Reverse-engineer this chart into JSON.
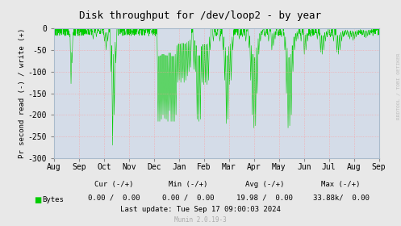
{
  "title": "Disk throughput for /dev/loop2 - by year",
  "ylabel": "Pr second read (-) / write (+)",
  "background_color": "#e8e8e8",
  "plot_bg_color": "#d4dce8",
  "grid_color_h": "#ff9999",
  "grid_color_v": "#ff9999",
  "line_color": "#00cc00",
  "ylim": [
    -300,
    0
  ],
  "yticks": [
    0,
    -50,
    -100,
    -150,
    -200,
    -250,
    -300
  ],
  "xlabel_months": [
    "Aug",
    "Sep",
    "Oct",
    "Nov",
    "Dec",
    "Jan",
    "Feb",
    "Mar",
    "Apr",
    "May",
    "Jun",
    "Jul",
    "Aug",
    "Sep"
  ],
  "side_label": "RRDTOOL / TOBI OETIKER",
  "legend_label": "Bytes",
  "cur_label": "Cur (-/+)",
  "min_label": "Min (-/+)",
  "avg_label": "Avg (-/+)",
  "max_label": "Max (-/+)",
  "cur": "0.00 /  0.00",
  "min_val": "0.00 /  0.00",
  "avg": "19.98 /  0.00",
  "max": "33.88k/  0.00",
  "last_update": "Last update: Tue Sep 17 09:00:03 2024",
  "munin_version": "Munin 2.0.19-3",
  "spike_data": [
    [
      0.045,
      -8
    ],
    [
      0.048,
      -20
    ],
    [
      0.052,
      -128
    ],
    [
      0.055,
      -80
    ],
    [
      0.058,
      -15
    ],
    [
      0.1,
      -8
    ],
    [
      0.11,
      -15
    ],
    [
      0.12,
      -25
    ],
    [
      0.13,
      -20
    ],
    [
      0.14,
      -10
    ],
    [
      0.155,
      -30
    ],
    [
      0.16,
      -50
    ],
    [
      0.165,
      -30
    ],
    [
      0.175,
      -100
    ],
    [
      0.18,
      -270
    ],
    [
      0.185,
      -200
    ],
    [
      0.19,
      -80
    ],
    [
      0.22,
      -15
    ],
    [
      0.24,
      -10
    ],
    [
      0.26,
      -12
    ],
    [
      0.28,
      -8
    ],
    [
      0.3,
      -12
    ],
    [
      0.32,
      -215
    ],
    [
      0.325,
      -215
    ],
    [
      0.33,
      -210
    ],
    [
      0.335,
      -200
    ],
    [
      0.34,
      -208
    ],
    [
      0.345,
      -210
    ],
    [
      0.35,
      -215
    ],
    [
      0.355,
      -190
    ],
    [
      0.36,
      -215
    ],
    [
      0.365,
      -215
    ],
    [
      0.37,
      -215
    ],
    [
      0.375,
      -200
    ],
    [
      0.38,
      -125
    ],
    [
      0.385,
      -120
    ],
    [
      0.39,
      -125
    ],
    [
      0.395,
      -115
    ],
    [
      0.4,
      -125
    ],
    [
      0.405,
      -120
    ],
    [
      0.41,
      -110
    ],
    [
      0.415,
      -100
    ],
    [
      0.42,
      -90
    ],
    [
      0.43,
      -95
    ],
    [
      0.435,
      -100
    ],
    [
      0.44,
      -210
    ],
    [
      0.445,
      -215
    ],
    [
      0.45,
      -210
    ],
    [
      0.455,
      -125
    ],
    [
      0.46,
      -130
    ],
    [
      0.465,
      -125
    ],
    [
      0.47,
      -130
    ],
    [
      0.475,
      -120
    ],
    [
      0.48,
      -50
    ],
    [
      0.49,
      -30
    ],
    [
      0.5,
      -15
    ],
    [
      0.51,
      -30
    ],
    [
      0.52,
      -50
    ],
    [
      0.525,
      -120
    ],
    [
      0.53,
      -220
    ],
    [
      0.535,
      -210
    ],
    [
      0.54,
      -130
    ],
    [
      0.545,
      -120
    ],
    [
      0.55,
      -50
    ],
    [
      0.57,
      -25
    ],
    [
      0.58,
      -20
    ],
    [
      0.59,
      -30
    ],
    [
      0.6,
      -45
    ],
    [
      0.605,
      -120
    ],
    [
      0.61,
      -200
    ],
    [
      0.615,
      -230
    ],
    [
      0.62,
      -225
    ],
    [
      0.625,
      -150
    ],
    [
      0.63,
      -60
    ],
    [
      0.635,
      -30
    ],
    [
      0.64,
      -15
    ],
    [
      0.65,
      -20
    ],
    [
      0.66,
      -30
    ],
    [
      0.67,
      -50
    ],
    [
      0.675,
      -40
    ],
    [
      0.68,
      -25
    ],
    [
      0.69,
      -15
    ],
    [
      0.7,
      -20
    ],
    [
      0.71,
      -50
    ],
    [
      0.715,
      -150
    ],
    [
      0.72,
      -230
    ],
    [
      0.725,
      -225
    ],
    [
      0.73,
      -200
    ],
    [
      0.735,
      -100
    ],
    [
      0.74,
      -50
    ],
    [
      0.745,
      -30
    ],
    [
      0.75,
      -25
    ],
    [
      0.76,
      -30
    ],
    [
      0.77,
      -60
    ],
    [
      0.775,
      -50
    ],
    [
      0.78,
      -30
    ],
    [
      0.79,
      -20
    ],
    [
      0.8,
      -15
    ],
    [
      0.81,
      -25
    ],
    [
      0.82,
      -55
    ],
    [
      0.825,
      -60
    ],
    [
      0.83,
      -50
    ],
    [
      0.835,
      -30
    ],
    [
      0.84,
      -20
    ],
    [
      0.85,
      -20
    ],
    [
      0.86,
      -30
    ],
    [
      0.87,
      -55
    ],
    [
      0.875,
      -60
    ],
    [
      0.88,
      -50
    ],
    [
      0.885,
      -30
    ],
    [
      0.89,
      -20
    ],
    [
      0.895,
      -15
    ],
    [
      0.9,
      -15
    ],
    [
      0.905,
      -20
    ],
    [
      0.91,
      -25
    ],
    [
      0.915,
      -20
    ],
    [
      0.92,
      -28
    ],
    [
      0.925,
      -25
    ],
    [
      0.93,
      -20
    ],
    [
      0.935,
      -15
    ],
    [
      0.94,
      -10
    ],
    [
      0.945,
      -12
    ],
    [
      0.95,
      -15
    ],
    [
      0.955,
      -20
    ],
    [
      0.96,
      -22
    ],
    [
      0.965,
      -18
    ],
    [
      0.97,
      -15
    ],
    [
      0.975,
      -10
    ],
    [
      0.98,
      -8
    ]
  ],
  "noise_density": 0.7,
  "baseline_noise": -5
}
